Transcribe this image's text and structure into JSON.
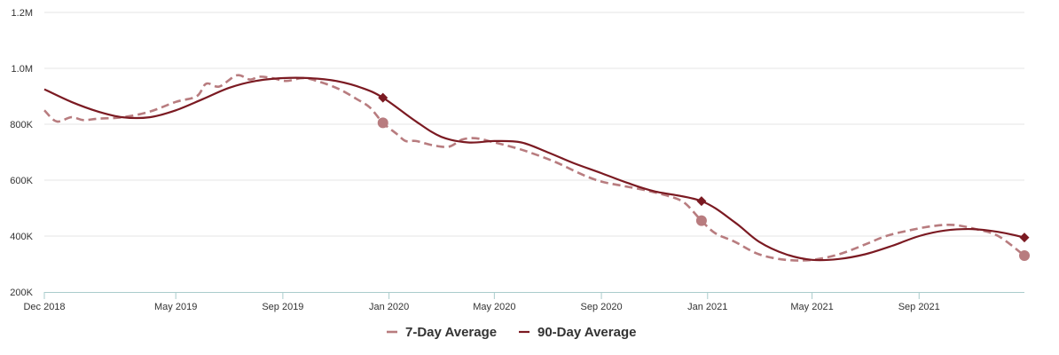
{
  "chart_data": {
    "type": "line",
    "title": "",
    "xlabel": "",
    "ylabel": "",
    "grid": true,
    "legend_position": "bottom-center",
    "ylim": [
      200000,
      1200000
    ],
    "xlim": [
      "2018-12-01",
      "2021-12-31"
    ],
    "y_ticks": [
      {
        "value": 200000,
        "label": "200K"
      },
      {
        "value": 400000,
        "label": "400K"
      },
      {
        "value": 600000,
        "label": "600K"
      },
      {
        "value": 800000,
        "label": "800K"
      },
      {
        "value": 1000000,
        "label": "1.0M"
      },
      {
        "value": 1200000,
        "label": "1.2M"
      }
    ],
    "x_ticks": [
      {
        "date": "2018-12-01",
        "label": "Dec 2018"
      },
      {
        "date": "2019-05-01",
        "label": "May 2019"
      },
      {
        "date": "2019-09-01",
        "label": "Sep 2019"
      },
      {
        "date": "2020-01-01",
        "label": "Jan 2020"
      },
      {
        "date": "2020-05-01",
        "label": "May 2020"
      },
      {
        "date": "2020-09-01",
        "label": "Sep 2020"
      },
      {
        "date": "2021-01-01",
        "label": "Jan 2021"
      },
      {
        "date": "2021-05-01",
        "label": "May 2021"
      },
      {
        "date": "2021-09-01",
        "label": "Sep 2021"
      }
    ],
    "series": [
      {
        "name": "7-Day Average",
        "color": "#b87c7f",
        "dash": true,
        "marker": "circle",
        "marker_dates": [
          "2019-12-25",
          "2020-12-25",
          "2021-12-31"
        ],
        "points": [
          [
            "2018-12-01",
            850000
          ],
          [
            "2018-12-15",
            810000
          ],
          [
            "2019-01-01",
            825000
          ],
          [
            "2019-01-15",
            815000
          ],
          [
            "2019-02-01",
            820000
          ],
          [
            "2019-03-01",
            825000
          ],
          [
            "2019-04-01",
            845000
          ],
          [
            "2019-05-01",
            880000
          ],
          [
            "2019-05-25",
            900000
          ],
          [
            "2019-06-05",
            945000
          ],
          [
            "2019-06-20",
            935000
          ],
          [
            "2019-07-10",
            975000
          ],
          [
            "2019-07-25",
            960000
          ],
          [
            "2019-08-05",
            970000
          ],
          [
            "2019-08-20",
            965000
          ],
          [
            "2019-09-05",
            955000
          ],
          [
            "2019-09-25",
            965000
          ],
          [
            "2019-10-15",
            950000
          ],
          [
            "2019-11-05",
            925000
          ],
          [
            "2019-11-25",
            890000
          ],
          [
            "2019-12-10",
            860000
          ],
          [
            "2019-12-25",
            805000
          ],
          [
            "2020-01-10",
            765000
          ],
          [
            "2020-01-20",
            740000
          ],
          [
            "2020-02-01",
            740000
          ],
          [
            "2020-02-20",
            725000
          ],
          [
            "2020-03-10",
            720000
          ],
          [
            "2020-03-25",
            745000
          ],
          [
            "2020-04-10",
            750000
          ],
          [
            "2020-05-01",
            735000
          ],
          [
            "2020-05-20",
            720000
          ],
          [
            "2020-06-10",
            700000
          ],
          [
            "2020-07-10",
            665000
          ],
          [
            "2020-08-10",
            620000
          ],
          [
            "2020-09-01",
            595000
          ],
          [
            "2020-09-25",
            580000
          ],
          [
            "2020-10-20",
            565000
          ],
          [
            "2020-11-15",
            545000
          ],
          [
            "2020-12-05",
            520000
          ],
          [
            "2020-12-25",
            455000
          ],
          [
            "2021-01-10",
            410000
          ],
          [
            "2021-02-01",
            380000
          ],
          [
            "2021-03-01",
            335000
          ],
          [
            "2021-04-01",
            315000
          ],
          [
            "2021-05-01",
            315000
          ],
          [
            "2021-06-01",
            335000
          ],
          [
            "2021-07-01",
            370000
          ],
          [
            "2021-07-25",
            400000
          ],
          [
            "2021-08-20",
            420000
          ],
          [
            "2021-09-15",
            435000
          ],
          [
            "2021-10-10",
            440000
          ],
          [
            "2021-11-05",
            425000
          ],
          [
            "2021-12-01",
            400000
          ],
          [
            "2021-12-31",
            330000
          ]
        ]
      },
      {
        "name": "90-Day Average",
        "color": "#7b1a22",
        "dash": false,
        "marker": "diamond",
        "marker_dates": [
          "2019-12-25",
          "2020-12-25",
          "2021-12-31"
        ],
        "points": [
          [
            "2018-12-01",
            925000
          ],
          [
            "2019-01-01",
            880000
          ],
          [
            "2019-02-01",
            845000
          ],
          [
            "2019-03-01",
            825000
          ],
          [
            "2019-04-01",
            825000
          ],
          [
            "2019-05-01",
            850000
          ],
          [
            "2019-06-01",
            890000
          ],
          [
            "2019-07-01",
            930000
          ],
          [
            "2019-08-01",
            955000
          ],
          [
            "2019-09-01",
            965000
          ],
          [
            "2019-10-01",
            965000
          ],
          [
            "2019-11-01",
            955000
          ],
          [
            "2019-12-01",
            930000
          ],
          [
            "2019-12-25",
            895000
          ],
          [
            "2020-02-01",
            810000
          ],
          [
            "2020-03-01",
            755000
          ],
          [
            "2020-04-01",
            735000
          ],
          [
            "2020-05-01",
            740000
          ],
          [
            "2020-06-01",
            735000
          ],
          [
            "2020-07-01",
            700000
          ],
          [
            "2020-08-01",
            660000
          ],
          [
            "2020-09-01",
            625000
          ],
          [
            "2020-10-01",
            590000
          ],
          [
            "2020-11-01",
            560000
          ],
          [
            "2020-12-25",
            525000
          ],
          [
            "2021-02-01",
            450000
          ],
          [
            "2021-03-01",
            380000
          ],
          [
            "2021-04-01",
            335000
          ],
          [
            "2021-05-01",
            315000
          ],
          [
            "2021-06-01",
            318000
          ],
          [
            "2021-07-01",
            335000
          ],
          [
            "2021-08-01",
            365000
          ],
          [
            "2021-09-01",
            400000
          ],
          [
            "2021-10-01",
            420000
          ],
          [
            "2021-11-01",
            425000
          ],
          [
            "2021-12-01",
            415000
          ],
          [
            "2021-12-31",
            395000
          ]
        ]
      }
    ]
  }
}
